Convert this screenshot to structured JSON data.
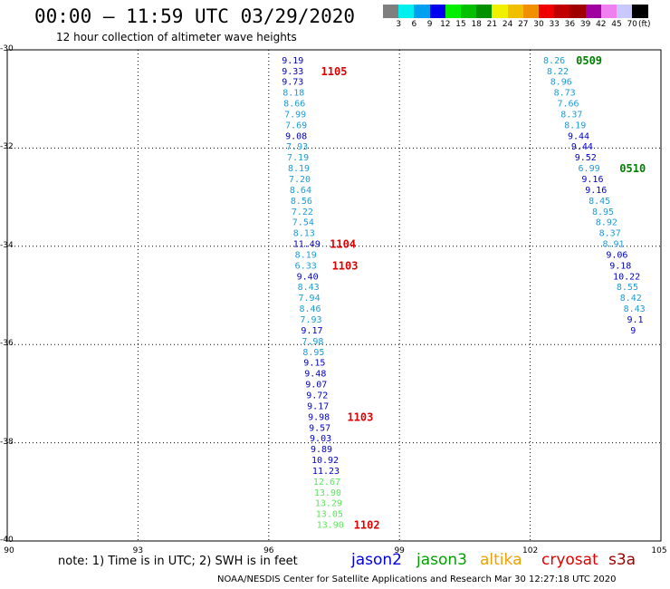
{
  "title": "00:00 – 11:59 UTC 03/29/2020",
  "subtitle": "12 hour collection of altimeter wave heights",
  "colorbar": {
    "unit": "(ft)",
    "labels": [
      "3",
      "6",
      "9",
      "12",
      "15",
      "18",
      "21",
      "24",
      "27",
      "30",
      "33",
      "36",
      "39",
      "42",
      "45",
      "70"
    ],
    "colors": [
      "#7f7f7f",
      "#00f0f0",
      "#00a0f0",
      "#0000f0",
      "#00f000",
      "#00c000",
      "#009000",
      "#f0f000",
      "#f0c000",
      "#f09000",
      "#f00000",
      "#c00000",
      "#a00000",
      "#a000a0",
      "#f080f0",
      "#c8c8ff",
      "#000000"
    ]
  },
  "axes": {
    "y_ticks": [
      {
        "value": -30,
        "label": "-30"
      },
      {
        "value": -32,
        "label": "-32"
      },
      {
        "value": -34,
        "label": "-34"
      },
      {
        "value": -36,
        "label": "-36"
      },
      {
        "value": -38,
        "label": "-38"
      },
      {
        "value": -40,
        "label": "-40"
      }
    ],
    "x_ticks": [
      {
        "value": 90,
        "label": "90"
      },
      {
        "value": 93,
        "label": "93"
      },
      {
        "value": 96,
        "label": "96"
      },
      {
        "value": 99,
        "label": "99"
      },
      {
        "value": 102,
        "label": "102"
      },
      {
        "value": 105,
        "label": "105"
      }
    ],
    "lon_range": [
      90,
      105
    ],
    "lat_range": [
      -40,
      -30
    ],
    "grid": true
  },
  "track_west": [
    {
      "lat": -30.2,
      "lon": 96.3,
      "swh": "9.19",
      "color": "#0000c8"
    },
    {
      "lat": -30.42,
      "lon": 96.3,
      "swh": "9.33",
      "color": "#0000c8"
    },
    {
      "lat": -30.64,
      "lon": 96.3,
      "swh": "9.73",
      "color": "#0000c8"
    },
    {
      "lat": -30.86,
      "lon": 96.32,
      "swh": "8.18",
      "color": "#1e9bd7"
    },
    {
      "lat": -31.08,
      "lon": 96.34,
      "swh": "8.66",
      "color": "#1e9bd7"
    },
    {
      "lat": -31.3,
      "lon": 96.36,
      "swh": "7.99",
      "color": "#1e9bd7"
    },
    {
      "lat": -31.52,
      "lon": 96.38,
      "swh": "7.69",
      "color": "#1e9bd7"
    },
    {
      "lat": -31.74,
      "lon": 96.38,
      "swh": "9.08",
      "color": "#0000c8"
    },
    {
      "lat": -31.96,
      "lon": 96.4,
      "swh": "7.93",
      "color": "#1e9bd7"
    },
    {
      "lat": -32.18,
      "lon": 96.42,
      "swh": "7.19",
      "color": "#1e9bd7"
    },
    {
      "lat": -32.4,
      "lon": 96.44,
      "swh": "8.19",
      "color": "#1e9bd7"
    },
    {
      "lat": -32.62,
      "lon": 96.46,
      "swh": "7.20",
      "color": "#1e9bd7"
    },
    {
      "lat": -32.84,
      "lon": 96.48,
      "swh": "8.64",
      "color": "#1e9bd7"
    },
    {
      "lat": -33.06,
      "lon": 96.5,
      "swh": "8.56",
      "color": "#1e9bd7"
    },
    {
      "lat": -33.28,
      "lon": 96.52,
      "swh": "7.22",
      "color": "#1e9bd7"
    },
    {
      "lat": -33.5,
      "lon": 96.54,
      "swh": "7.54",
      "color": "#1e9bd7"
    },
    {
      "lat": -33.72,
      "lon": 96.56,
      "swh": "8.13",
      "color": "#1e9bd7"
    },
    {
      "lat": -33.94,
      "lon": 96.56,
      "swh": "11.49",
      "color": "#0000c8"
    },
    {
      "lat": -34.16,
      "lon": 96.6,
      "swh": "8.19",
      "color": "#1e9bd7"
    },
    {
      "lat": -34.38,
      "lon": 96.6,
      "swh": "6.33",
      "color": "#1e9bd7"
    },
    {
      "lat": -34.6,
      "lon": 96.64,
      "swh": "9.40",
      "color": "#0000c8"
    },
    {
      "lat": -34.82,
      "lon": 96.66,
      "swh": "8.43",
      "color": "#1e9bd7"
    },
    {
      "lat": -35.04,
      "lon": 96.68,
      "swh": "7.94",
      "color": "#1e9bd7"
    },
    {
      "lat": -35.26,
      "lon": 96.7,
      "swh": "8.46",
      "color": "#1e9bd7"
    },
    {
      "lat": -35.48,
      "lon": 96.72,
      "swh": "7.93",
      "color": "#1e9bd7"
    },
    {
      "lat": -35.7,
      "lon": 96.74,
      "swh": "9.17",
      "color": "#0000c8"
    },
    {
      "lat": -35.92,
      "lon": 96.76,
      "swh": "7.98",
      "color": "#1e9bd7"
    },
    {
      "lat": -36.14,
      "lon": 96.78,
      "swh": "8.95",
      "color": "#1e9bd7"
    },
    {
      "lat": -36.36,
      "lon": 96.8,
      "swh": "9.15",
      "color": "#0000c8"
    },
    {
      "lat": -36.58,
      "lon": 96.82,
      "swh": "9.48",
      "color": "#0000c8"
    },
    {
      "lat": -36.8,
      "lon": 96.84,
      "swh": "9.07",
      "color": "#0000c8"
    },
    {
      "lat": -37.02,
      "lon": 96.86,
      "swh": "9.72",
      "color": "#0000c8"
    },
    {
      "lat": -37.24,
      "lon": 96.88,
      "swh": "9.17",
      "color": "#0000c8"
    },
    {
      "lat": -37.46,
      "lon": 96.9,
      "swh": "9.98",
      "color": "#0000c8"
    },
    {
      "lat": -37.68,
      "lon": 96.92,
      "swh": "9.57",
      "color": "#0000c8"
    },
    {
      "lat": -37.9,
      "lon": 96.94,
      "swh": "9.03",
      "color": "#0000c8"
    },
    {
      "lat": -38.12,
      "lon": 96.96,
      "swh": "9.89",
      "color": "#0000c8"
    },
    {
      "lat": -38.34,
      "lon": 96.98,
      "swh": "10.92",
      "color": "#0000c8"
    },
    {
      "lat": -38.56,
      "lon": 97.0,
      "swh": "11.23",
      "color": "#0000c8"
    },
    {
      "lat": -38.78,
      "lon": 97.02,
      "swh": "12.67",
      "color": "#5ce65c"
    },
    {
      "lat": -39.0,
      "lon": 97.04,
      "swh": "13.90",
      "color": "#5ce65c"
    },
    {
      "lat": -39.22,
      "lon": 97.06,
      "swh": "13.29",
      "color": "#5ce65c"
    },
    {
      "lat": -39.44,
      "lon": 97.08,
      "swh": "13.05",
      "color": "#5ce65c"
    },
    {
      "lat": -39.66,
      "lon": 97.1,
      "swh": "13.90",
      "color": "#5ce65c"
    }
  ],
  "track_east": [
    {
      "lat": -30.2,
      "lon": 102.3,
      "swh": "8.26",
      "color": "#1e9bd7"
    },
    {
      "lat": -30.42,
      "lon": 102.38,
      "swh": "8.22",
      "color": "#1e9bd7"
    },
    {
      "lat": -30.64,
      "lon": 102.46,
      "swh": "8.96",
      "color": "#1e9bd7"
    },
    {
      "lat": -30.86,
      "lon": 102.54,
      "swh": "8.73",
      "color": "#1e9bd7"
    },
    {
      "lat": -31.08,
      "lon": 102.62,
      "swh": "7.66",
      "color": "#1e9bd7"
    },
    {
      "lat": -31.3,
      "lon": 102.7,
      "swh": "8.37",
      "color": "#1e9bd7"
    },
    {
      "lat": -31.52,
      "lon": 102.78,
      "swh": "8.19",
      "color": "#1e9bd7"
    },
    {
      "lat": -31.74,
      "lon": 102.86,
      "swh": "9.44",
      "color": "#0000c8"
    },
    {
      "lat": -31.96,
      "lon": 102.94,
      "swh": "9.44",
      "color": "#0000c8"
    },
    {
      "lat": -32.18,
      "lon": 103.02,
      "swh": "9.52",
      "color": "#0000c8"
    },
    {
      "lat": -32.4,
      "lon": 103.1,
      "swh": "6.99",
      "color": "#1e9bd7"
    },
    {
      "lat": -32.62,
      "lon": 103.18,
      "swh": "9.16",
      "color": "#0000c8"
    },
    {
      "lat": -32.84,
      "lon": 103.26,
      "swh": "9.16",
      "color": "#0000c8"
    },
    {
      "lat": -33.06,
      "lon": 103.34,
      "swh": "8.45",
      "color": "#1e9bd7"
    },
    {
      "lat": -33.28,
      "lon": 103.42,
      "swh": "8.95",
      "color": "#1e9bd7"
    },
    {
      "lat": -33.5,
      "lon": 103.5,
      "swh": "8.92",
      "color": "#1e9bd7"
    },
    {
      "lat": -33.72,
      "lon": 103.58,
      "swh": "8.37",
      "color": "#1e9bd7"
    },
    {
      "lat": -33.94,
      "lon": 103.66,
      "swh": "8.91",
      "color": "#1e9bd7"
    },
    {
      "lat": -34.16,
      "lon": 103.74,
      "swh": "9.06",
      "color": "#0000c8"
    },
    {
      "lat": -34.38,
      "lon": 103.82,
      "swh": "9.18",
      "color": "#0000c8"
    },
    {
      "lat": -34.6,
      "lon": 103.9,
      "swh": "10.22",
      "color": "#0000c8"
    },
    {
      "lat": -34.82,
      "lon": 103.98,
      "swh": "8.55",
      "color": "#1e9bd7"
    },
    {
      "lat": -35.04,
      "lon": 104.06,
      "swh": "8.42",
      "color": "#1e9bd7"
    },
    {
      "lat": -35.26,
      "lon": 104.14,
      "swh": "8.43",
      "color": "#1e9bd7"
    },
    {
      "lat": -35.48,
      "lon": 104.22,
      "swh": "9.1",
      "color": "#0000c8"
    },
    {
      "lat": -35.7,
      "lon": 104.3,
      "swh": "9",
      "color": "#0000c8"
    }
  ],
  "pass_labels": [
    {
      "lat": -30.42,
      "lon": 97.2,
      "text": "1105",
      "color": "#e00000"
    },
    {
      "lat": -33.94,
      "lon": 97.4,
      "text": "1104",
      "color": "#e00000"
    },
    {
      "lat": -34.38,
      "lon": 97.45,
      "text": "1103",
      "color": "#e00000"
    },
    {
      "lat": -37.46,
      "lon": 97.8,
      "text": "1103",
      "color": "#e00000"
    },
    {
      "lat": -39.66,
      "lon": 97.95,
      "text": "1102",
      "color": "#e00000"
    },
    {
      "lat": -30.2,
      "lon": 103.05,
      "text": "0509",
      "color": "#008000"
    },
    {
      "lat": -32.4,
      "lon": 104.05,
      "text": "0510",
      "color": "#008000"
    }
  ],
  "note": "note: 1) Time is in UTC; 2) SWH is in feet",
  "missions": [
    {
      "name": "jason2",
      "color": "#0000e0"
    },
    {
      "name": "jason3",
      "color": "#00a000"
    },
    {
      "name": "altika",
      "color": "#f0a000"
    },
    {
      "name": "cryosat",
      "color": "#e00000"
    },
    {
      "name": "s3a",
      "color": "#a00000"
    }
  ],
  "credit": "NOAA/NESDIS Center for Satellite Applications and Research   Mar 30 12:27:18 UTC 2020"
}
